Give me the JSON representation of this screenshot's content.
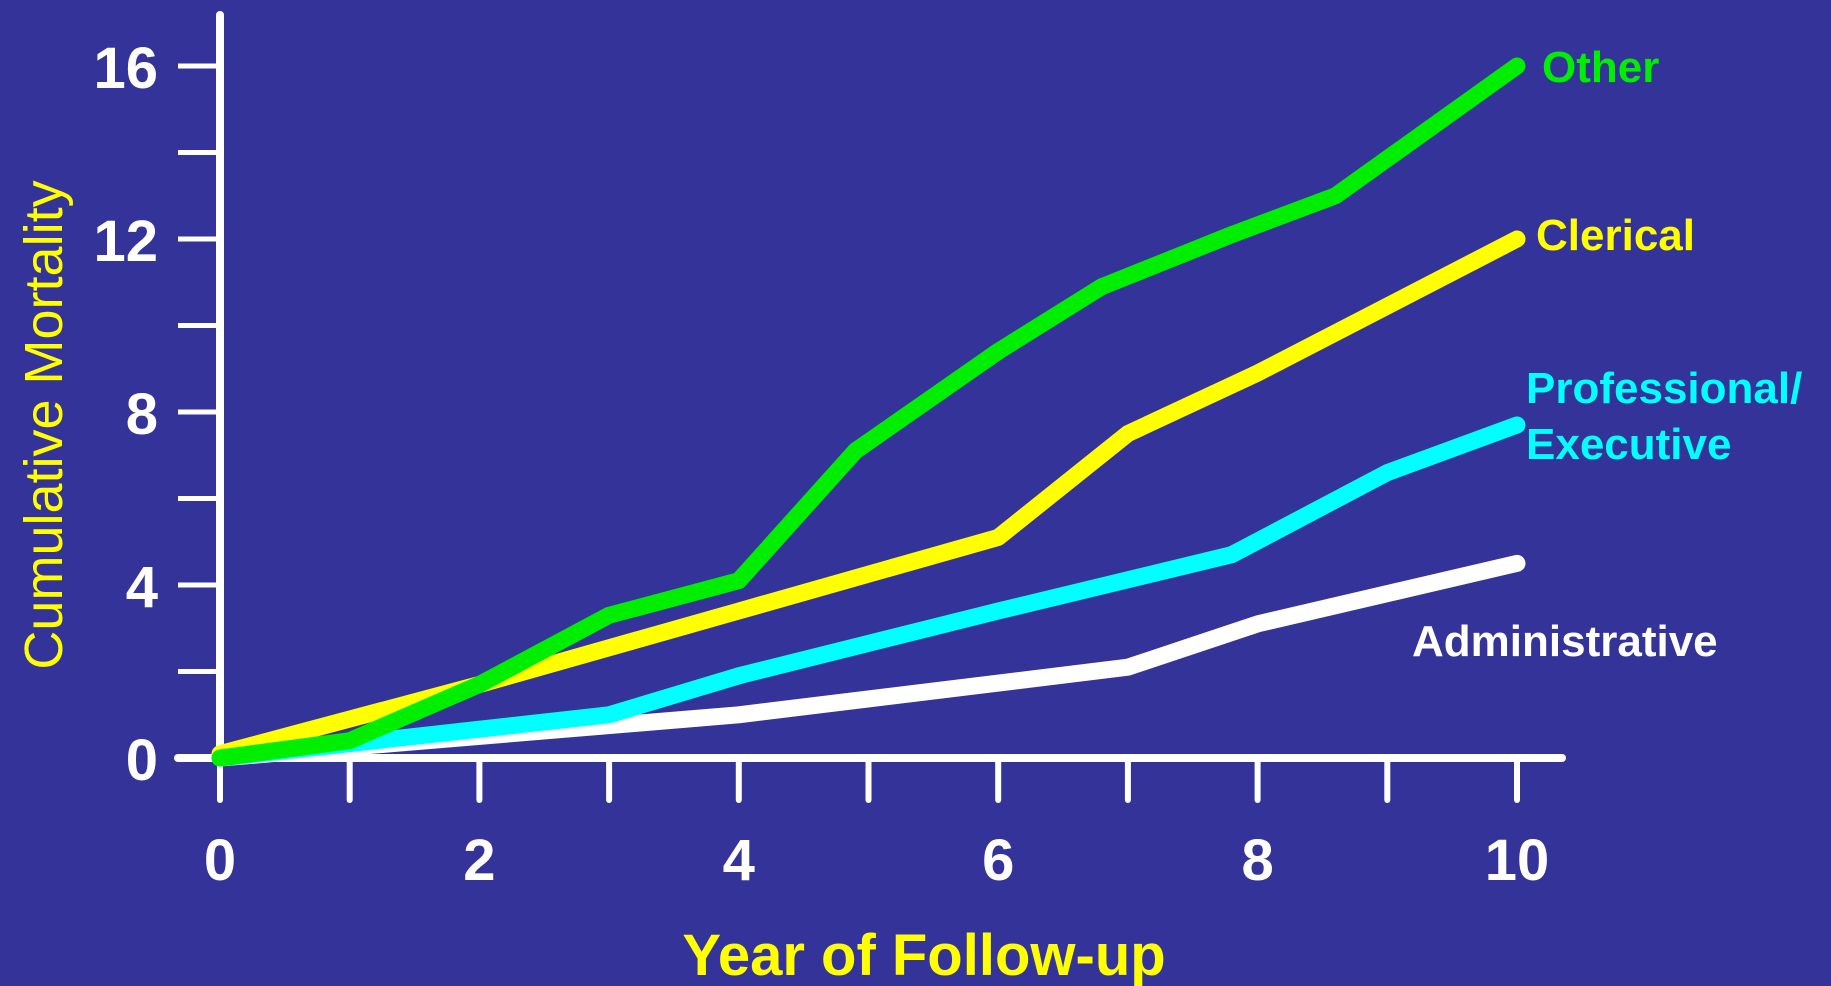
{
  "colors": {
    "background": "#343399",
    "axis": "#ffffff",
    "axis_title": "#ffff00"
  },
  "chart_data": {
    "type": "line",
    "title": "",
    "xlabel": "Year of Follow-up",
    "ylabel": "Cumulative Mortality",
    "xlim": [
      0,
      10
    ],
    "ylim": [
      0,
      16
    ],
    "x_tick_labels": [
      "0",
      "2",
      "4",
      "6",
      "8",
      "10"
    ],
    "y_tick_labels": [
      "0",
      "4",
      "8",
      "12",
      "16"
    ],
    "grid": false,
    "legend": "direct labels at line ends",
    "series": [
      {
        "name": "Other",
        "label_lines": [
          "Other"
        ],
        "color": "#00ee00",
        "x": [
          0,
          1,
          2,
          3,
          4,
          4.9,
          6,
          6.8,
          7.8,
          8.6,
          10
        ],
        "y": [
          0,
          0.4,
          1.7,
          3.3,
          4.1,
          7.1,
          9.4,
          10.9,
          12.1,
          13.0,
          16.0
        ]
      },
      {
        "name": "Clerical",
        "label_lines": [
          "Clerical"
        ],
        "color": "#ffff00",
        "x": [
          0,
          2,
          4,
          6,
          7,
          8,
          10
        ],
        "y": [
          0.1,
          1.7,
          3.4,
          5.1,
          7.5,
          8.9,
          12.0
        ]
      },
      {
        "name": "Professional/ Executive",
        "label_lines": [
          "Professional/",
          "Executive"
        ],
        "color": "#00ffff",
        "x": [
          0,
          3,
          4,
          6,
          7.8,
          9,
          10
        ],
        "y": [
          0,
          1.0,
          1.9,
          3.4,
          4.7,
          6.6,
          7.7
        ]
      },
      {
        "name": "Administrative",
        "label_lines": [
          "Administrative"
        ],
        "color": "#ffffff",
        "x": [
          0,
          2,
          4,
          7,
          8,
          10
        ],
        "y": [
          0,
          0.5,
          1.0,
          2.1,
          3.1,
          4.5
        ]
      }
    ]
  }
}
